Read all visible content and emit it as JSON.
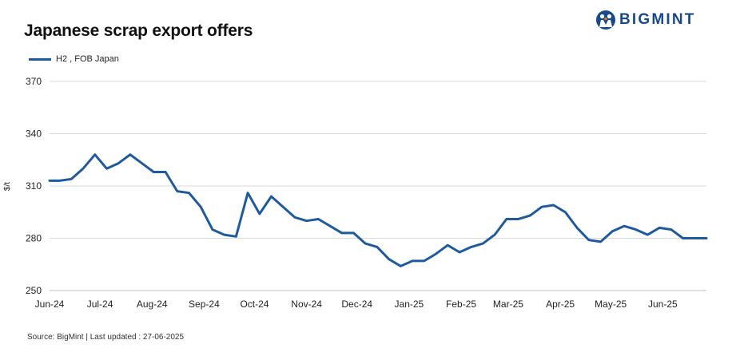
{
  "header": {
    "title": "Japanese scrap export offers",
    "logo_text": "BIGMINT",
    "logo_icon": "bigmint-people-icon",
    "brand_color": "#174a8a"
  },
  "footer": {
    "source": "Source: BigMint | Last updated : 27-06-2025"
  },
  "chart_data": {
    "type": "line",
    "title": "Japanese scrap export offers",
    "xlabel": "",
    "ylabel": "$/t",
    "ylim": [
      250,
      370
    ],
    "yticks": [
      "250",
      "280",
      "310",
      "340",
      "370"
    ],
    "xticks": [
      "Jun-24",
      "Jul-24",
      "Aug-24",
      "Sep-24",
      "Oct-24",
      "Nov-24",
      "Dec-24",
      "Jan-25",
      "Feb-25",
      "Mar-25",
      "Apr-25",
      "May-25",
      "Jun-25"
    ],
    "grid": "horizontal",
    "legend_position": "top-left",
    "series": [
      {
        "name": "H2 , FOB Japan",
        "color": "#1e5aa0",
        "x": [
          "2024-06-01",
          "2024-06-07",
          "2024-06-14",
          "2024-06-21",
          "2024-06-28",
          "2024-07-05",
          "2024-07-12",
          "2024-07-19",
          "2024-07-26",
          "2024-08-02",
          "2024-08-09",
          "2024-08-16",
          "2024-08-23",
          "2024-08-30",
          "2024-09-06",
          "2024-09-13",
          "2024-09-20",
          "2024-09-27",
          "2024-10-04",
          "2024-10-11",
          "2024-10-18",
          "2024-10-25",
          "2024-11-01",
          "2024-11-08",
          "2024-11-15",
          "2024-11-22",
          "2024-11-29",
          "2024-12-06",
          "2024-12-13",
          "2024-12-20",
          "2024-12-27",
          "2025-01-03",
          "2025-01-10",
          "2025-01-17",
          "2025-01-24",
          "2025-01-31",
          "2025-02-07",
          "2025-02-14",
          "2025-02-21",
          "2025-02-28",
          "2025-03-07",
          "2025-03-14",
          "2025-03-21",
          "2025-03-28",
          "2025-04-04",
          "2025-04-11",
          "2025-04-18",
          "2025-04-25",
          "2025-05-02",
          "2025-05-09",
          "2025-05-16",
          "2025-05-23",
          "2025-05-30",
          "2025-06-06",
          "2025-06-13",
          "2025-06-20",
          "2025-06-27"
        ],
        "values": [
          313,
          313,
          314,
          320,
          328,
          320,
          323,
          328,
          323,
          318,
          318,
          307,
          306,
          298,
          285,
          282,
          281,
          306,
          294,
          304,
          298,
          292,
          290,
          291,
          287,
          283,
          283,
          277,
          275,
          268,
          264,
          267,
          267,
          271,
          276,
          272,
          275,
          277,
          282,
          291,
          291,
          293,
          298,
          299,
          295,
          286,
          279,
          278,
          284,
          287,
          285,
          282,
          286,
          285,
          280,
          280,
          280
        ]
      }
    ]
  }
}
